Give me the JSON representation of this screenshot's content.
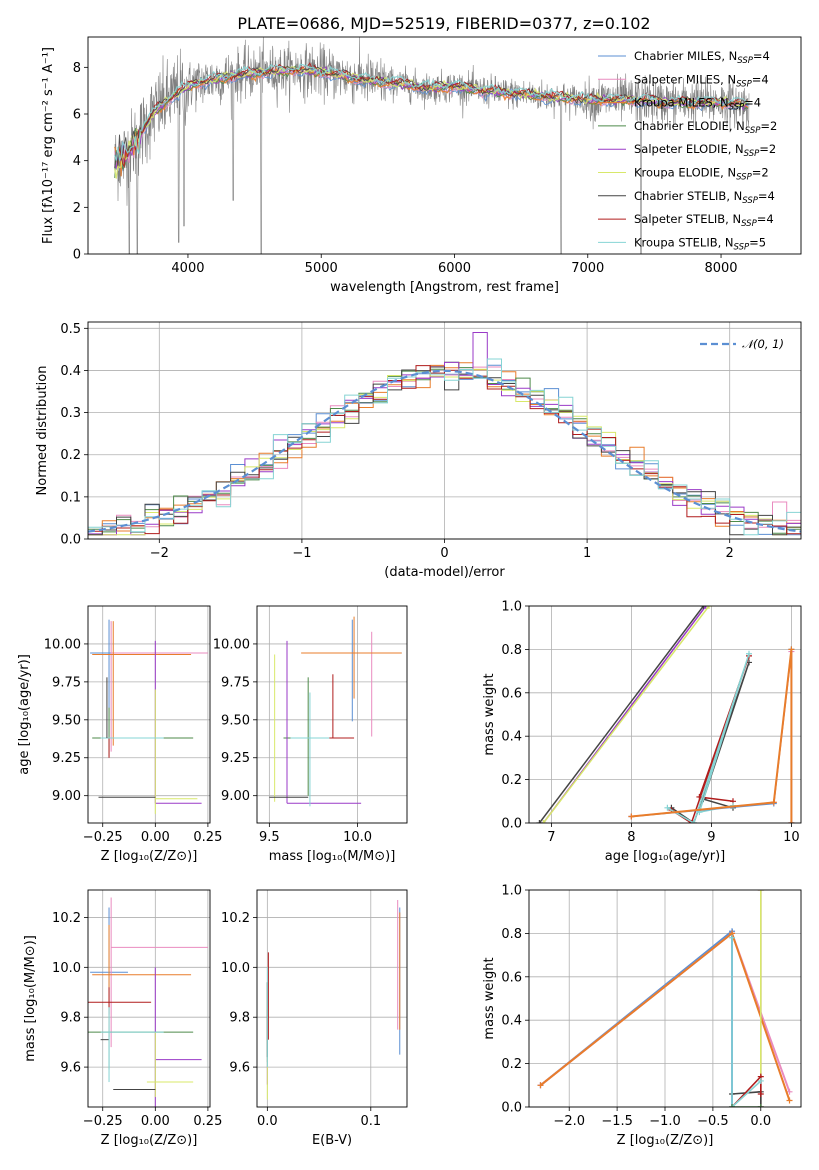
{
  "figure": {
    "title": "PLATE=0686, MJD=52519, FIBERID=0377, z=0.102"
  },
  "colors": [
    "#5b8fd3",
    "#e98bbf",
    "#e87d2b",
    "#4e8a4a",
    "#9a3ac7",
    "#d8e86a",
    "#444444",
    "#b01c1c",
    "#86d4d4"
  ],
  "chart_data": [
    {
      "id": "spectrum",
      "type": "line",
      "title": "PLATE=0686, MJD=52519, FIBERID=0377, z=0.102",
      "xlabel": "wavelength [Angstrom, rest frame]",
      "ylabel": "Flux [fλ10⁻¹⁷ erg cm⁻² s⁻¹ A⁻¹]",
      "xlim": [
        3250,
        8600
      ],
      "ylim": [
        0,
        9.3
      ],
      "xticks": [
        4000,
        5000,
        6000,
        7000,
        8000
      ],
      "yticks": [
        0,
        2,
        4,
        6,
        8
      ],
      "grid": false,
      "legend_position": "top-right",
      "continuum": {
        "x": [
          3450,
          3550,
          3650,
          3750,
          3850,
          3950,
          4050,
          4200,
          4400,
          4600,
          4800,
          5000,
          5200,
          5400,
          5600,
          5800,
          6000,
          6200,
          6400,
          6600,
          6800,
          7000,
          7200,
          7400,
          7600,
          7800,
          8000,
          8200
        ],
        "y": [
          3.9,
          4.3,
          5.2,
          6.1,
          6.6,
          7.0,
          7.3,
          7.5,
          7.7,
          7.8,
          7.9,
          7.8,
          7.6,
          7.4,
          7.3,
          7.1,
          7.2,
          7.0,
          6.9,
          6.8,
          6.7,
          6.6,
          6.6,
          6.6,
          6.5,
          6.5,
          6.5,
          6.4
        ]
      },
      "series": [
        {
          "name": "Chabrier MILES, N_SSP=4",
          "n_ssp": "4"
        },
        {
          "name": "Salpeter MILES, N_SSP=4",
          "n_ssp": "4"
        },
        {
          "name": "Kroupa MILES, N_SSP=4",
          "n_ssp": "4"
        },
        {
          "name": "Chabrier ELODIE, N_SSP=2",
          "n_ssp": "2"
        },
        {
          "name": "Salpeter ELODIE, N_SSP=2",
          "n_ssp": "2"
        },
        {
          "name": "Kroupa ELODIE, N_SSP=2",
          "n_ssp": "2"
        },
        {
          "name": "Chabrier STELIB, N_SSP=4",
          "n_ssp": "4"
        },
        {
          "name": "Salpeter STELIB, N_SSP=4",
          "n_ssp": "4"
        },
        {
          "name": "Kroupa STELIB, N_SSP=5",
          "n_ssp": "5"
        }
      ]
    },
    {
      "id": "residuals",
      "type": "line",
      "xlabel": "(data-model)/error",
      "ylabel": "Normed distribution",
      "xlim": [
        -2.5,
        2.5
      ],
      "ylim": [
        0,
        0.515
      ],
      "xticks": [
        -2,
        -1,
        0,
        1,
        2
      ],
      "yticks": [
        0.0,
        0.1,
        0.2,
        0.3,
        0.4,
        0.5
      ],
      "grid": true,
      "legend_position": "top-right",
      "legend": "𝒩(0, 1)",
      "bin_width": 0.1,
      "bin_start": -2.5
    },
    {
      "id": "age_vs_z",
      "type": "scatter",
      "xlabel": "Z [log₁₀(Z/Z⊙)]",
      "ylabel": "age  [log₁₀(age/yr)]",
      "xlim": [
        -0.32,
        0.26
      ],
      "ylim": [
        8.82,
        10.25
      ],
      "xticks": [
        -0.25,
        0.0,
        0.25
      ],
      "yticks": [
        9.0,
        9.25,
        9.5,
        9.75,
        10.0
      ],
      "grid": true
    },
    {
      "id": "age_vs_mass",
      "type": "scatter",
      "xlabel": "mass [log₁₀(M/M⊙)]",
      "xlim": [
        9.43,
        10.28
      ],
      "ylim": [
        8.82,
        10.25
      ],
      "xticks": [
        9.5,
        10.0
      ],
      "yticks": [
        9.0,
        9.25,
        9.5,
        9.75,
        10.0
      ],
      "grid": true
    },
    {
      "id": "weight_vs_age",
      "type": "line",
      "xlabel": "age  [log₁₀(age/yr)]",
      "ylabel": "mass weight",
      "xlim": [
        6.72,
        10.12
      ],
      "ylim": [
        0,
        1.0
      ],
      "xticks": [
        7,
        8,
        9,
        10
      ],
      "yticks": [
        0.0,
        0.2,
        0.4,
        0.6,
        0.8,
        1.0
      ],
      "grid": true
    },
    {
      "id": "mass_vs_z",
      "type": "scatter",
      "xlabel": "Z [log₁₀(Z/Z⊙)]",
      "ylabel": "mass [log₁₀(M/M⊙)]",
      "xlim": [
        -0.32,
        0.26
      ],
      "ylim": [
        9.44,
        10.31
      ],
      "xticks": [
        -0.25,
        0.0,
        0.25
      ],
      "yticks": [
        9.6,
        9.8,
        10.0,
        10.2
      ],
      "grid": true
    },
    {
      "id": "mass_vs_ebv",
      "type": "scatter",
      "xlabel": "E(B-V)",
      "xlim": [
        -0.01,
        0.135
      ],
      "ylim": [
        9.44,
        10.31
      ],
      "xticks": [
        0.0,
        0.1
      ],
      "yticks": [
        9.6,
        9.8,
        10.0,
        10.2
      ],
      "grid": true
    },
    {
      "id": "weight_vs_z",
      "type": "line",
      "xlabel": "Z [log₁₀(Z/Z⊙)]",
      "ylabel": "mass weight",
      "xlim": [
        -2.42,
        0.42
      ],
      "ylim": [
        0,
        1.0
      ],
      "xticks": [
        -2.0,
        -1.5,
        -1.0,
        -0.5,
        0.0
      ],
      "yticks": [
        0.0,
        0.2,
        0.4,
        0.6,
        0.8,
        1.0
      ],
      "grid": true
    }
  ]
}
